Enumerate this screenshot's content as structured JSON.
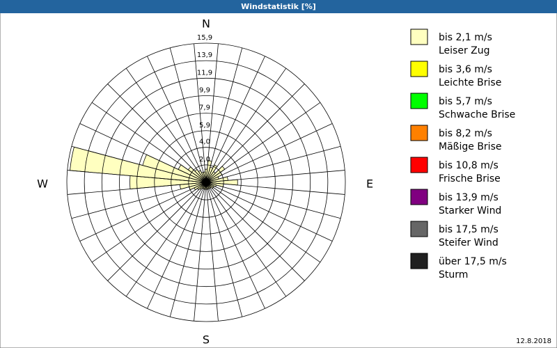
{
  "chart_data": {
    "type": "windrose",
    "title": "Windstatistik [%]",
    "date": "12.8.2018",
    "direction_labels": {
      "n": "N",
      "e": "E",
      "s": "S",
      "w": "W"
    },
    "x": [
      0,
      10,
      20,
      30,
      40,
      50,
      60,
      70,
      80,
      90,
      100,
      110,
      120,
      130,
      140,
      150,
      160,
      170,
      180,
      190,
      200,
      210,
      220,
      230,
      240,
      250,
      260,
      270,
      280,
      290,
      300,
      310,
      320,
      330,
      340,
      350
    ],
    "rlim": [
      0,
      15.9
    ],
    "rticks": [
      {
        "value": 2.0,
        "label": "2,0"
      },
      {
        "value": 4.0,
        "label": "4,0"
      },
      {
        "value": 5.9,
        "label": "5,9"
      },
      {
        "value": 7.9,
        "label": "7,9"
      },
      {
        "value": 9.9,
        "label": "9,9"
      },
      {
        "value": 11.9,
        "label": "11,9"
      },
      {
        "value": 13.9,
        "label": "13,9"
      },
      {
        "value": 15.9,
        "label": "15,9"
      }
    ],
    "series": [
      {
        "name": "bis 2,1 m/s",
        "description": "Leiser Zug",
        "color": "#ffffc0",
        "values": [
          1.5,
          2.5,
          1.8,
          2.2,
          1.5,
          2.6,
          2.0,
          1.5,
          2.5,
          3.6,
          2.0,
          1.2,
          1.0,
          1.0,
          0.8,
          0.8,
          0.8,
          0.8,
          0.8,
          0.8,
          0.8,
          0.8,
          1.0,
          1.2,
          1.5,
          2.0,
          3.0,
          8.7,
          15.6,
          7.5,
          3.5,
          2.5,
          1.8,
          1.5,
          1.2,
          1.2
        ]
      },
      {
        "name": "bis 3,6 m/s",
        "description": "Leichte Brise",
        "color": "#ffff00"
      },
      {
        "name": "bis 5,7 m/s",
        "description": "Schwache Brise",
        "color": "#00ff00"
      },
      {
        "name": "bis 8,2 m/s",
        "description": "Mäßige Brise",
        "color": "#ff8000"
      },
      {
        "name": "bis 10,8 m/s",
        "description": "Frische Brise",
        "color": "#ff0000"
      },
      {
        "name": "bis 13,9 m/s",
        "description": "Starker Wind",
        "color": "#800080"
      },
      {
        "name": "bis 17,5 m/s",
        "description": "Steifer Wind",
        "color": "#666666"
      },
      {
        "name": "über 17,5 m/s",
        "description": "Sturm",
        "color": "#202020"
      }
    ]
  }
}
